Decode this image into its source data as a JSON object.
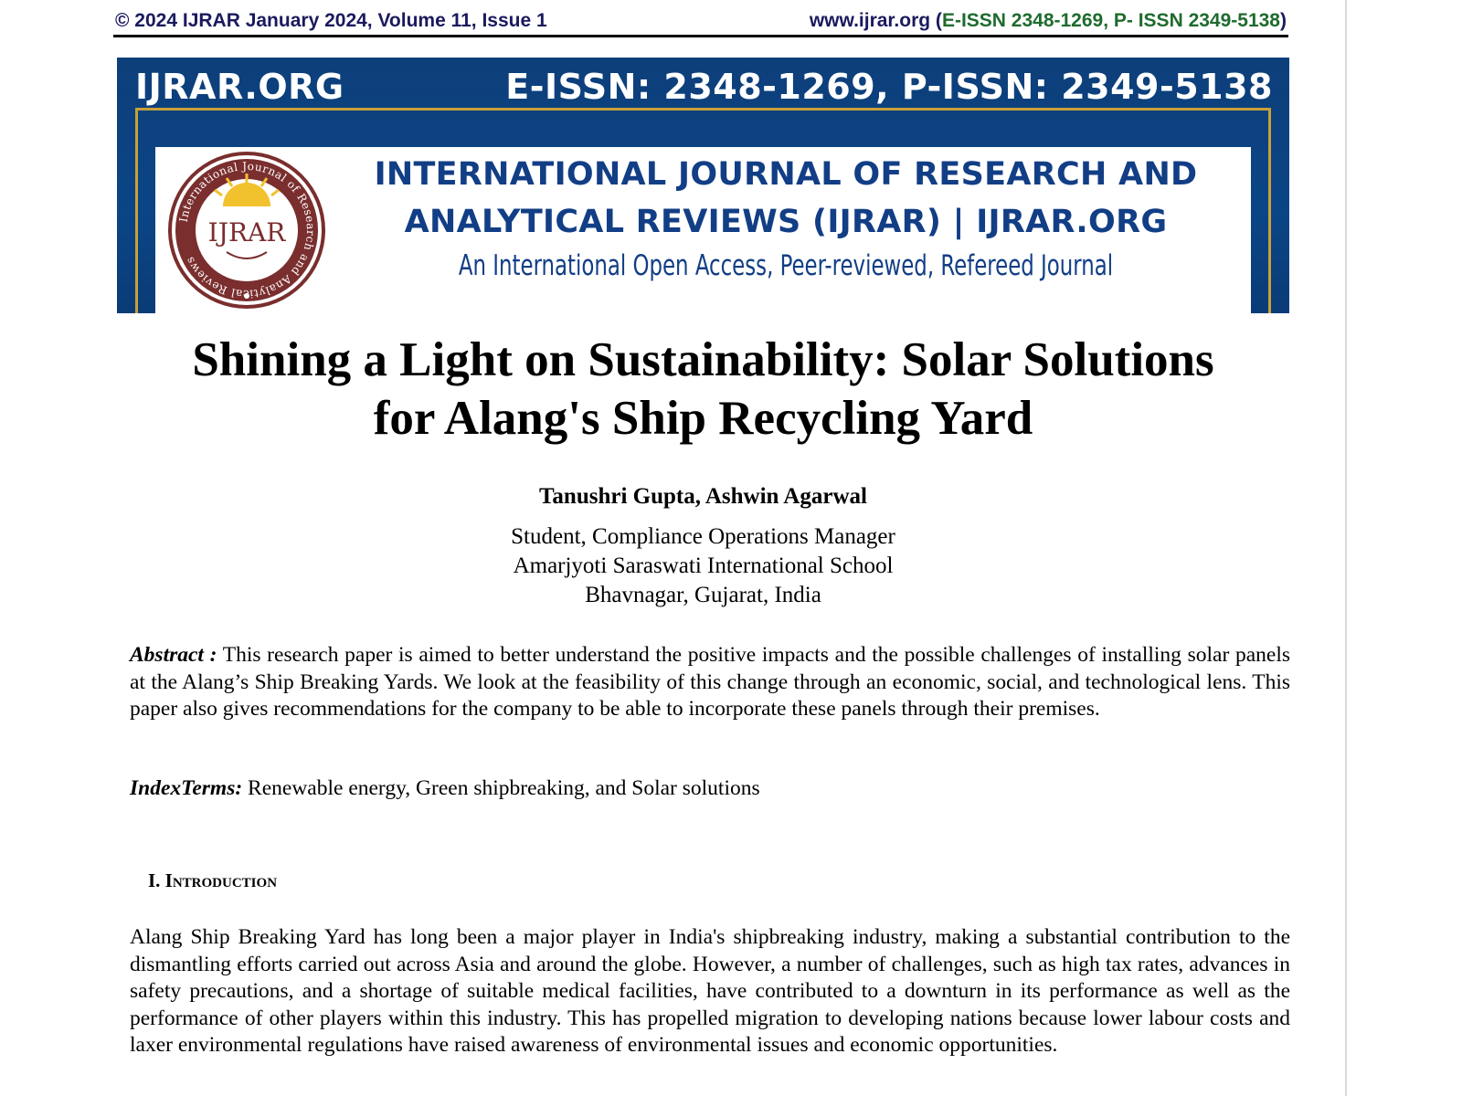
{
  "running_header": {
    "left": "© 2024 IJRAR January 2024, Volume 11, Issue 1",
    "site": "www.ijrar.org (",
    "issn": "E-ISSN 2348-1269, P- ISSN 2349-5138",
    "close": ")"
  },
  "banner": {
    "site_name": "IJRAR.ORG",
    "issn": "E-ISSN: 2348-1269, P-ISSN: 2349-5138",
    "journal_line1": "INTERNATIONAL JOURNAL OF RESEARCH AND",
    "journal_line2": "ANALYTICAL REVIEWS (IJRAR) | IJRAR.ORG",
    "tagline": "An International Open Access, Peer-reviewed, Refereed Journal",
    "seal_text": "IJRAR",
    "seal_ring_text": "International Journal of Research and Analytical Reviews",
    "colors": {
      "navy": "#0b4586",
      "gold": "#c9a038",
      "journal_blue": "#123e86",
      "seal_maroon": "#7a2e2e"
    }
  },
  "paper": {
    "title_line1": "Shining a Light on Sustainability: Solar Solutions",
    "title_line2": "for Alang's Ship Recycling Yard",
    "authors": "Tanushri Gupta, Ashwin Agarwal",
    "affiliation_line1": "Student, Compliance Operations Manager",
    "affiliation_line2": "Amarjyoti Saraswati International School",
    "affiliation_line3": "Bhavnagar, Gujarat, India",
    "abstract_label": "Abstract :",
    "abstract_text": " This research paper is aimed to better understand the positive impacts and the possible challenges of installing solar panels at the Alang’s Ship Breaking Yards. We look at the feasibility of this change through an economic, social, and technological lens. This paper also gives recommendations for the company to be able to incorporate these panels through their premises.",
    "index_terms_label": "IndexTerms:",
    "index_terms_text": " Renewable energy, Green shipbreaking, and Solar solutions",
    "section_heading": "I. Introduction",
    "intro_paragraph": "Alang Ship Breaking Yard has long been a major player in India's shipbreaking industry, making a substantial contribution to the dismantling efforts carried out across Asia and around the globe. However, a number of challenges, such as high tax rates, advances in safety precautions, and a shortage of suitable medical facilities, have contributed to a downturn in its performance as well as the performance of other players within this industry. This has propelled migration to developing nations because lower labour costs and laxer environmental regulations have raised awareness of environmental issues and economic opportunities."
  }
}
